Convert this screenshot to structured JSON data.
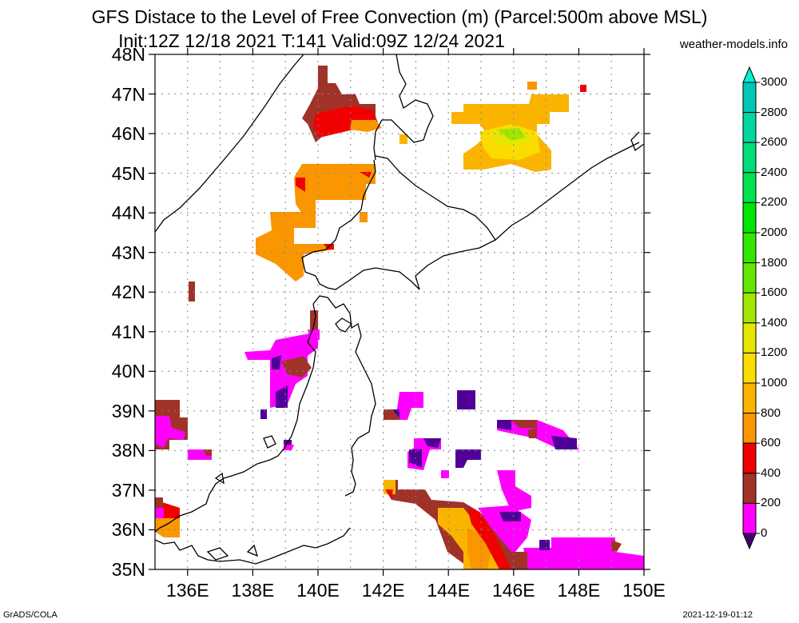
{
  "header": {
    "title_line1": "GFS Distace to the Level of Free Convection (m) (Parcel:500m above MSL)",
    "title_line2": "Init:12Z 12/18 2021 T:141 Valid:09Z 12/24 2021",
    "credit": "weather-models.info"
  },
  "footer": {
    "left": "GrADS/COLA",
    "right": "2021-12-19-01:12"
  },
  "map": {
    "lat_labels": [
      "48N",
      "47N",
      "46N",
      "45N",
      "44N",
      "43N",
      "42N",
      "41N",
      "40N",
      "39N",
      "38N",
      "37N",
      "36N",
      "35N"
    ],
    "lon_labels": [
      "136E",
      "138E",
      "140E",
      "142E",
      "144E",
      "146E",
      "148E",
      "150E"
    ],
    "lon_range": [
      135,
      150
    ],
    "lat_range": [
      35,
      48
    ]
  },
  "colorbar": {
    "levels": [
      "3000",
      "2800",
      "2600",
      "2400",
      "2200",
      "2000",
      "1800",
      "1600",
      "1400",
      "1200",
      "1000",
      "800",
      "600",
      "400",
      "200",
      "0"
    ],
    "colors": [
      "#00c8b4",
      "#00d7a0",
      "#00dc78",
      "#00e150",
      "#00e600",
      "#32e600",
      "#64e600",
      "#a0e600",
      "#e6e600",
      "#fadc00",
      "#fab400",
      "#fa9600",
      "#f00000",
      "#a03228",
      "#ff00ff",
      "#500096"
    ],
    "top_color": "#00f0d2",
    "bottom_color": "#46006e"
  },
  "fields": {
    "white": "#ffffff",
    "dkblue": "#500096",
    "magenta": "#ff00ff",
    "brown": "#a03228",
    "red": "#f00000",
    "orange": "#fa9600",
    "yellow_orange": "#fab400",
    "yellow": "#fadc00",
    "yellow2": "#e6e600",
    "green": "#a0e600"
  }
}
